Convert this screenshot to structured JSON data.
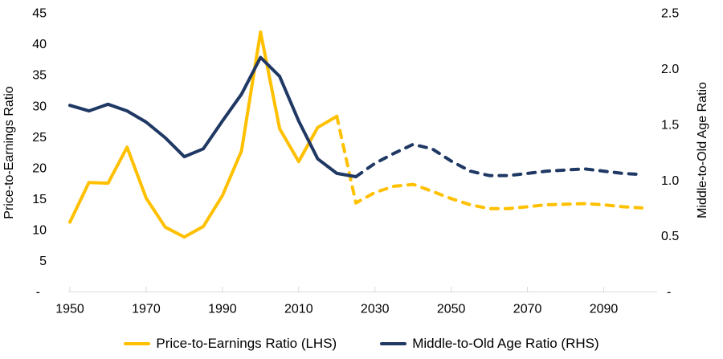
{
  "chart_data": {
    "type": "line",
    "x": [
      1950,
      1955,
      1960,
      1965,
      1970,
      1975,
      1980,
      1985,
      1990,
      1995,
      2000,
      2005,
      2010,
      2015,
      2020,
      2025,
      2030,
      2035,
      2040,
      2045,
      2050,
      2055,
      2060,
      2065,
      2070,
      2075,
      2080,
      2085,
      2090,
      2095,
      2100
    ],
    "series": [
      {
        "name": "Price-to-Earnings Ratio (LHS)",
        "axis": "left",
        "color": "#FFC000",
        "solid_until": 2020,
        "values": [
          11.2,
          17.6,
          17.5,
          23.3,
          15.1,
          10.4,
          8.8,
          10.5,
          15.5,
          22.7,
          41.9,
          26.3,
          21.0,
          26.5,
          28.3,
          14.3,
          16.0,
          17.0,
          17.3,
          16.2,
          15.0,
          14.0,
          13.4,
          13.4,
          13.7,
          14.0,
          14.1,
          14.2,
          14.0,
          13.7,
          13.5
        ]
      },
      {
        "name": "Middle-to-Old Age Ratio (RHS)",
        "axis": "right",
        "color": "#1F3864",
        "solid_until": 2025,
        "values": [
          1.67,
          1.62,
          1.68,
          1.62,
          1.52,
          1.38,
          1.21,
          1.28,
          1.53,
          1.77,
          2.1,
          1.93,
          1.53,
          1.19,
          1.06,
          1.03,
          1.15,
          1.24,
          1.32,
          1.28,
          1.17,
          1.08,
          1.04,
          1.04,
          1.06,
          1.08,
          1.09,
          1.1,
          1.08,
          1.06,
          1.05
        ]
      }
    ],
    "left_axis": {
      "title": "Price-to-Earnings Ratio",
      "min": 0,
      "max": 45,
      "step": 5,
      "zero_label": "-",
      "decimals": 0
    },
    "right_axis": {
      "title": "Middle-to-Old Age Ratio",
      "min": 0,
      "max": 2.5,
      "step": 0.5,
      "zero_label": "-",
      "decimals": 1
    },
    "x_axis": {
      "min": 1950,
      "max": 2100,
      "tick_min": 1950,
      "tick_max": 2090,
      "tick_step": 20
    },
    "grid": false,
    "legend_position": "bottom",
    "colors": {
      "axis_line": "#D9D9D9",
      "text": "#000000",
      "background": "#FFFFFF"
    }
  }
}
